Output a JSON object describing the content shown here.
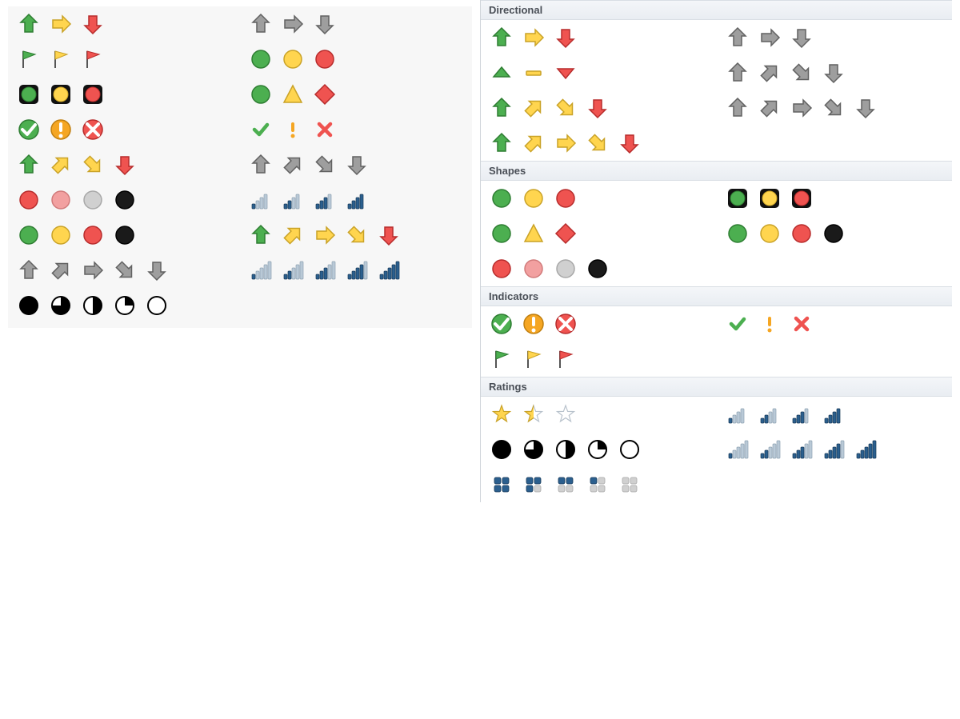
{
  "colors": {
    "green": {
      "fill": "#4caf50",
      "stroke": "#2e7d32"
    },
    "yellow": {
      "fill": "#ffd54f",
      "stroke": "#c9a227"
    },
    "red": {
      "fill": "#ef5350",
      "stroke": "#b72c2c"
    },
    "gray": {
      "fill": "#9e9e9e",
      "stroke": "#616161"
    },
    "black": {
      "fill": "#1a1a1a",
      "stroke": "#000000"
    },
    "pink": {
      "fill": "#f2a0a0",
      "stroke": "#d17a7a"
    },
    "ltgray": {
      "fill": "#d0d0d0",
      "stroke": "#a8a8a8"
    },
    "navy": {
      "fill": "#2b5f8e",
      "stroke": "#183a58"
    },
    "navylt": {
      "fill": "#b9c9d6",
      "stroke": "#8ea2b3"
    },
    "orange": {
      "fill": "#f5a623",
      "stroke": "#c07f10"
    },
    "white": {
      "fill": "#ffffff",
      "stroke": "#555555"
    }
  },
  "leftPanel": {
    "rows": [
      {
        "left": [
          {
            "t": "arrow",
            "d": "up",
            "c": "green"
          },
          {
            "t": "arrow",
            "d": "right",
            "c": "yellow"
          },
          {
            "t": "arrow",
            "d": "down",
            "c": "red"
          }
        ],
        "right": [
          {
            "t": "arrow",
            "d": "up",
            "c": "gray"
          },
          {
            "t": "arrow",
            "d": "right",
            "c": "gray"
          },
          {
            "t": "arrow",
            "d": "down",
            "c": "gray"
          }
        ]
      },
      {
        "left": [
          {
            "t": "flag",
            "c": "green"
          },
          {
            "t": "flag",
            "c": "yellow"
          },
          {
            "t": "flag",
            "c": "red"
          }
        ],
        "right": [
          {
            "t": "circle",
            "c": "green"
          },
          {
            "t": "circle",
            "c": "yellow"
          },
          {
            "t": "circle",
            "c": "red"
          }
        ]
      },
      {
        "left": [
          {
            "t": "light",
            "c": "green"
          },
          {
            "t": "light",
            "c": "yellow"
          },
          {
            "t": "light",
            "c": "red"
          }
        ],
        "right": [
          {
            "t": "circle",
            "c": "green"
          },
          {
            "t": "triangle",
            "c": "yellow"
          },
          {
            "t": "diamond",
            "c": "red"
          }
        ]
      },
      {
        "left": [
          {
            "t": "symcircle",
            "s": "check",
            "c": "green"
          },
          {
            "t": "symcircle",
            "s": "excl",
            "c": "orange"
          },
          {
            "t": "symcircle",
            "s": "cross",
            "c": "red"
          }
        ],
        "right": [
          {
            "t": "sym",
            "s": "check",
            "c": "green"
          },
          {
            "t": "sym",
            "s": "excl",
            "c": "orange"
          },
          {
            "t": "sym",
            "s": "cross",
            "c": "red"
          }
        ]
      },
      {
        "left": [
          {
            "t": "arrow",
            "d": "up",
            "c": "green"
          },
          {
            "t": "arrow",
            "d": "ur",
            "c": "yellow"
          },
          {
            "t": "arrow",
            "d": "dr",
            "c": "yellow"
          },
          {
            "t": "arrow",
            "d": "down",
            "c": "red"
          }
        ],
        "right": [
          {
            "t": "arrow",
            "d": "up",
            "c": "gray"
          },
          {
            "t": "arrow",
            "d": "ur",
            "c": "gray"
          },
          {
            "t": "arrow",
            "d": "dr",
            "c": "gray"
          },
          {
            "t": "arrow",
            "d": "down",
            "c": "gray"
          }
        ]
      },
      {
        "left": [
          {
            "t": "circle",
            "c": "red"
          },
          {
            "t": "circle",
            "c": "pink"
          },
          {
            "t": "circle",
            "c": "ltgray"
          },
          {
            "t": "circle",
            "c": "black"
          }
        ],
        "right": [
          {
            "t": "bars4",
            "level": 1,
            "c": "navy"
          },
          {
            "t": "bars4",
            "level": 2,
            "c": "navy"
          },
          {
            "t": "bars4",
            "level": 3,
            "c": "navy"
          },
          {
            "t": "bars4",
            "level": 4,
            "c": "navy"
          }
        ]
      },
      {
        "left": [
          {
            "t": "circle",
            "c": "green"
          },
          {
            "t": "circle",
            "c": "yellow"
          },
          {
            "t": "circle",
            "c": "red"
          },
          {
            "t": "circle",
            "c": "black"
          }
        ],
        "right": [
          {
            "t": "arrow",
            "d": "up",
            "c": "green"
          },
          {
            "t": "arrow",
            "d": "ur",
            "c": "yellow"
          },
          {
            "t": "arrow",
            "d": "right",
            "c": "yellow"
          },
          {
            "t": "arrow",
            "d": "dr",
            "c": "yellow"
          },
          {
            "t": "arrow",
            "d": "down",
            "c": "red"
          }
        ]
      },
      {
        "left": [
          {
            "t": "arrow",
            "d": "up",
            "c": "gray"
          },
          {
            "t": "arrow",
            "d": "ur",
            "c": "gray"
          },
          {
            "t": "arrow",
            "d": "right",
            "c": "gray"
          },
          {
            "t": "arrow",
            "d": "dr",
            "c": "gray"
          },
          {
            "t": "arrow",
            "d": "down",
            "c": "gray"
          }
        ],
        "right": [
          {
            "t": "bars5",
            "level": 1,
            "c": "navy"
          },
          {
            "t": "bars5",
            "level": 2,
            "c": "navy"
          },
          {
            "t": "bars5",
            "level": 3,
            "c": "navy"
          },
          {
            "t": "bars5",
            "level": 4,
            "c": "navy"
          },
          {
            "t": "bars5",
            "level": 5,
            "c": "navy"
          }
        ]
      },
      {
        "left": [
          {
            "t": "pie",
            "q": 4
          },
          {
            "t": "pie",
            "q": 3
          },
          {
            "t": "pie",
            "q": 2
          },
          {
            "t": "pie",
            "q": 1
          },
          {
            "t": "pie",
            "q": 0
          }
        ],
        "right": []
      }
    ]
  },
  "rightPanel": {
    "sections": [
      {
        "title": "Directional",
        "rows": [
          {
            "left": [
              {
                "t": "arrow",
                "d": "up",
                "c": "green"
              },
              {
                "t": "arrow",
                "d": "right",
                "c": "yellow"
              },
              {
                "t": "arrow",
                "d": "down",
                "c": "red"
              }
            ],
            "right": [
              {
                "t": "arrow",
                "d": "up",
                "c": "gray"
              },
              {
                "t": "arrow",
                "d": "right",
                "c": "gray"
              },
              {
                "t": "arrow",
                "d": "down",
                "c": "gray"
              }
            ]
          },
          {
            "left": [
              {
                "t": "tri",
                "d": "up",
                "c": "green"
              },
              {
                "t": "dash",
                "c": "yellow"
              },
              {
                "t": "tri",
                "d": "down",
                "c": "red"
              }
            ],
            "right": [
              {
                "t": "arrow",
                "d": "up",
                "c": "gray"
              },
              {
                "t": "arrow",
                "d": "ur",
                "c": "gray"
              },
              {
                "t": "arrow",
                "d": "dr",
                "c": "gray"
              },
              {
                "t": "arrow",
                "d": "down",
                "c": "gray"
              }
            ]
          },
          {
            "left": [
              {
                "t": "arrow",
                "d": "up",
                "c": "green"
              },
              {
                "t": "arrow",
                "d": "ur",
                "c": "yellow"
              },
              {
                "t": "arrow",
                "d": "dr",
                "c": "yellow"
              },
              {
                "t": "arrow",
                "d": "down",
                "c": "red"
              }
            ],
            "right": [
              {
                "t": "arrow",
                "d": "up",
                "c": "gray"
              },
              {
                "t": "arrow",
                "d": "ur",
                "c": "gray"
              },
              {
                "t": "arrow",
                "d": "right",
                "c": "gray"
              },
              {
                "t": "arrow",
                "d": "dr",
                "c": "gray"
              },
              {
                "t": "arrow",
                "d": "down",
                "c": "gray"
              }
            ]
          },
          {
            "left": [
              {
                "t": "arrow",
                "d": "up",
                "c": "green"
              },
              {
                "t": "arrow",
                "d": "ur",
                "c": "yellow"
              },
              {
                "t": "arrow",
                "d": "right",
                "c": "yellow"
              },
              {
                "t": "arrow",
                "d": "dr",
                "c": "yellow"
              },
              {
                "t": "arrow",
                "d": "down",
                "c": "red"
              }
            ],
            "right": []
          }
        ]
      },
      {
        "title": "Shapes",
        "rows": [
          {
            "left": [
              {
                "t": "circle",
                "c": "green"
              },
              {
                "t": "circle",
                "c": "yellow"
              },
              {
                "t": "circle",
                "c": "red"
              }
            ],
            "right": [
              {
                "t": "light",
                "c": "green"
              },
              {
                "t": "light",
                "c": "yellow"
              },
              {
                "t": "light",
                "c": "red"
              }
            ]
          },
          {
            "left": [
              {
                "t": "circle",
                "c": "green"
              },
              {
                "t": "triangle",
                "c": "yellow"
              },
              {
                "t": "diamond",
                "c": "red"
              }
            ],
            "right": [
              {
                "t": "circle",
                "c": "green"
              },
              {
                "t": "circle",
                "c": "yellow"
              },
              {
                "t": "circle",
                "c": "red"
              },
              {
                "t": "circle",
                "c": "black"
              }
            ]
          },
          {
            "left": [
              {
                "t": "circle",
                "c": "red"
              },
              {
                "t": "circle",
                "c": "pink"
              },
              {
                "t": "circle",
                "c": "ltgray"
              },
              {
                "t": "circle",
                "c": "black"
              }
            ],
            "right": []
          }
        ]
      },
      {
        "title": "Indicators",
        "rows": [
          {
            "left": [
              {
                "t": "symcircle",
                "s": "check",
                "c": "green"
              },
              {
                "t": "symcircle",
                "s": "excl",
                "c": "orange"
              },
              {
                "t": "symcircle",
                "s": "cross",
                "c": "red"
              }
            ],
            "right": [
              {
                "t": "sym",
                "s": "check",
                "c": "green"
              },
              {
                "t": "sym",
                "s": "excl",
                "c": "orange"
              },
              {
                "t": "sym",
                "s": "cross",
                "c": "red"
              }
            ]
          },
          {
            "left": [
              {
                "t": "flag",
                "c": "green"
              },
              {
                "t": "flag",
                "c": "yellow"
              },
              {
                "t": "flag",
                "c": "red"
              }
            ],
            "right": []
          }
        ]
      },
      {
        "title": "Ratings",
        "rows": [
          {
            "left": [
              {
                "t": "star",
                "f": 1
              },
              {
                "t": "star",
                "f": 0.5
              },
              {
                "t": "star",
                "f": 0
              }
            ],
            "right": [
              {
                "t": "bars4",
                "level": 1,
                "c": "navy"
              },
              {
                "t": "bars4",
                "level": 2,
                "c": "navy"
              },
              {
                "t": "bars4",
                "level": 3,
                "c": "navy"
              },
              {
                "t": "bars4",
                "level": 4,
                "c": "navy"
              }
            ]
          },
          {
            "left": [
              {
                "t": "pie",
                "q": 4
              },
              {
                "t": "pie",
                "q": 3
              },
              {
                "t": "pie",
                "q": 2
              },
              {
                "t": "pie",
                "q": 1
              },
              {
                "t": "pie",
                "q": 0
              }
            ],
            "right": [
              {
                "t": "bars5",
                "level": 1,
                "c": "navy"
              },
              {
                "t": "bars5",
                "level": 2,
                "c": "navy"
              },
              {
                "t": "bars5",
                "level": 3,
                "c": "navy"
              },
              {
                "t": "bars5",
                "level": 4,
                "c": "navy"
              },
              {
                "t": "bars5",
                "level": 5,
                "c": "navy"
              }
            ]
          },
          {
            "left": [
              {
                "t": "boxes",
                "f": 4
              },
              {
                "t": "boxes",
                "f": 3
              },
              {
                "t": "boxes",
                "f": 2
              },
              {
                "t": "boxes",
                "f": 1
              },
              {
                "t": "boxes",
                "f": 0
              }
            ],
            "right": []
          }
        ]
      }
    ]
  }
}
